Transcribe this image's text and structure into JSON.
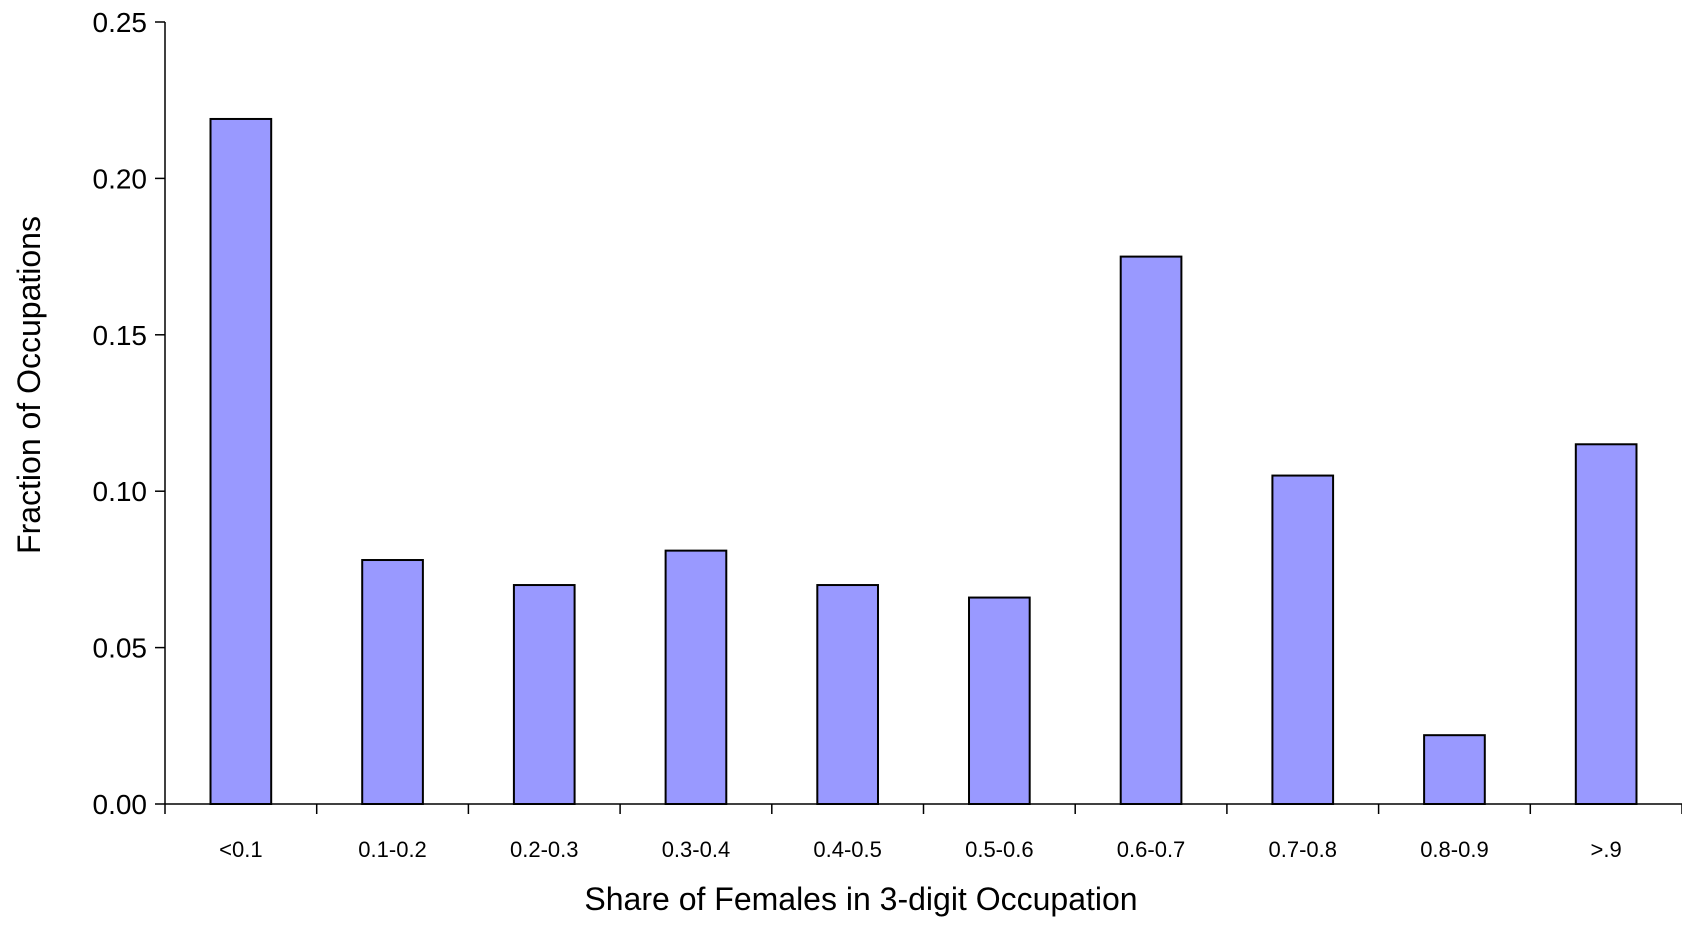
{
  "chart_data": {
    "type": "bar",
    "title": "",
    "xlabel": "Share of Females in 3-digit Occupation",
    "ylabel": "Fraction of Occupations",
    "categories": [
      "<0.1",
      "0.1-0.2",
      "0.2-0.3",
      "0.3-0.4",
      "0.4-0.5",
      "0.5-0.6",
      "0.6-0.7",
      "0.7-0.8",
      "0.8-0.9",
      ">.9"
    ],
    "values": [
      0.219,
      0.078,
      0.07,
      0.081,
      0.07,
      0.066,
      0.175,
      0.105,
      0.022,
      0.115
    ],
    "ylim": [
      0,
      0.25
    ],
    "yticks": [
      "0.00",
      "0.05",
      "0.10",
      "0.15",
      "0.20",
      "0.25"
    ],
    "grid": false,
    "bar_color": "#9999ff"
  }
}
